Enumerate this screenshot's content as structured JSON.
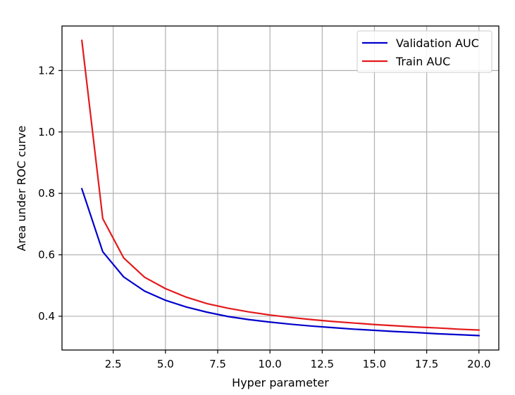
{
  "chart_data": {
    "type": "line",
    "title": "",
    "xlabel": "Hyper parameter",
    "ylabel": "Area under ROC curve",
    "xlim": [
      0.05,
      20.95
    ],
    "ylim": [
      0.29,
      1.345
    ],
    "xticks": [
      2.5,
      5.0,
      7.5,
      10.0,
      12.5,
      15.0,
      17.5,
      20.0
    ],
    "xtick_labels": [
      "2.5",
      "5.0",
      "7.5",
      "10.0",
      "12.5",
      "15.0",
      "17.5",
      "20.0"
    ],
    "yticks": [
      0.4,
      0.6,
      0.8,
      1.0,
      1.2
    ],
    "ytick_labels": [
      "0.4",
      "0.6",
      "0.8",
      "1.0",
      "1.2"
    ],
    "grid": true,
    "legend_position": "top-right",
    "x": [
      1,
      2,
      3,
      4,
      5,
      6,
      7,
      8,
      9,
      10,
      11,
      12,
      13,
      14,
      15,
      16,
      17,
      18,
      19,
      20
    ],
    "series": [
      {
        "name": "Validation AUC",
        "color": "#0000cc",
        "values": [
          0.815,
          0.61,
          0.528,
          0.482,
          0.452,
          0.43,
          0.413,
          0.399,
          0.389,
          0.381,
          0.374,
          0.368,
          0.363,
          0.358,
          0.354,
          0.35,
          0.347,
          0.343,
          0.34,
          0.337
        ]
      },
      {
        "name": "Train AUC",
        "color": "#e31a1c",
        "values": [
          1.298,
          0.718,
          0.59,
          0.527,
          0.49,
          0.462,
          0.441,
          0.426,
          0.414,
          0.404,
          0.396,
          0.389,
          0.383,
          0.378,
          0.373,
          0.369,
          0.365,
          0.362,
          0.358,
          0.355
        ]
      }
    ]
  }
}
